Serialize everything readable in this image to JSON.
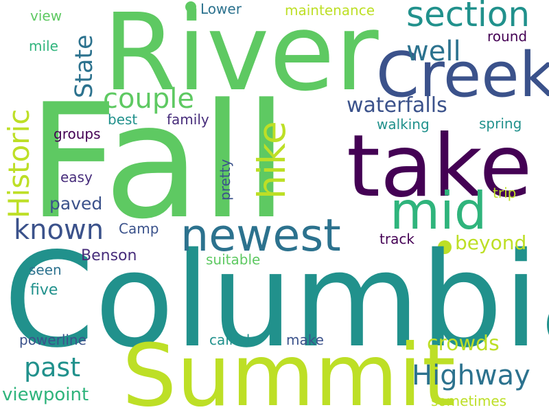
{
  "words": [
    {
      "text": "Fall",
      "color": "#5ec962"
    },
    {
      "text": "Columbia",
      "color": "#21918c"
    },
    {
      "text": "River",
      "color": "#5ec962"
    },
    {
      "text": "take",
      "color": "#440154"
    },
    {
      "text": "Summit",
      "color": "#bddf26"
    },
    {
      "text": "Creek",
      "color": "#3b528b"
    },
    {
      "text": "mid",
      "color": "#2fb47c"
    },
    {
      "text": "newest",
      "color": "#2c728e"
    },
    {
      "text": "section",
      "color": "#21918c"
    },
    {
      "text": "hike",
      "color": "#bddf26"
    },
    {
      "text": "Historic",
      "color": "#bddf26"
    },
    {
      "text": "State",
      "color": "#2c728e"
    },
    {
      "text": "couple",
      "color": "#5ec962"
    },
    {
      "text": "well",
      "color": "#2c728e"
    },
    {
      "text": "waterfalls",
      "color": "#3b528b"
    },
    {
      "text": "known",
      "color": "#3b528b"
    },
    {
      "text": "Highway",
      "color": "#2c728e"
    },
    {
      "text": "past",
      "color": "#21918c"
    },
    {
      "text": "crowds",
      "color": "#bddf26"
    },
    {
      "text": "beyond",
      "color": "#bddf26"
    },
    {
      "text": "viewpoint",
      "color": "#2fb47c"
    },
    {
      "text": "paved",
      "color": "#3b528b"
    },
    {
      "text": "Benson",
      "color": "#472d7b"
    },
    {
      "text": "Camp",
      "color": "#3b528b"
    },
    {
      "text": "track",
      "color": "#440154"
    },
    {
      "text": "suitable",
      "color": "#5ec962"
    },
    {
      "text": "seen",
      "color": "#2c728e"
    },
    {
      "text": "five",
      "color": "#21918c"
    },
    {
      "text": "powerline",
      "color": "#3b528b"
    },
    {
      "text": "called",
      "color": "#21918c"
    },
    {
      "text": "make",
      "color": "#3b528b"
    },
    {
      "text": "sometimes",
      "color": "#bddf26"
    },
    {
      "text": "trip",
      "color": "#bddf26"
    },
    {
      "text": "pretty",
      "color": "#3b528b"
    },
    {
      "text": "easy",
      "color": "#472d7b"
    },
    {
      "text": "groups",
      "color": "#440154"
    },
    {
      "text": "best",
      "color": "#21918c"
    },
    {
      "text": "family",
      "color": "#472d7b"
    },
    {
      "text": "walking",
      "color": "#21918c"
    },
    {
      "text": "spring",
      "color": "#21918c"
    },
    {
      "text": "round",
      "color": "#440154"
    },
    {
      "text": "maintenance",
      "color": "#bddf26"
    },
    {
      "text": "Lower",
      "color": "#2c728e"
    },
    {
      "text": "view",
      "color": "#5ec962"
    },
    {
      "text": "mile",
      "color": "#2fb47c"
    }
  ]
}
